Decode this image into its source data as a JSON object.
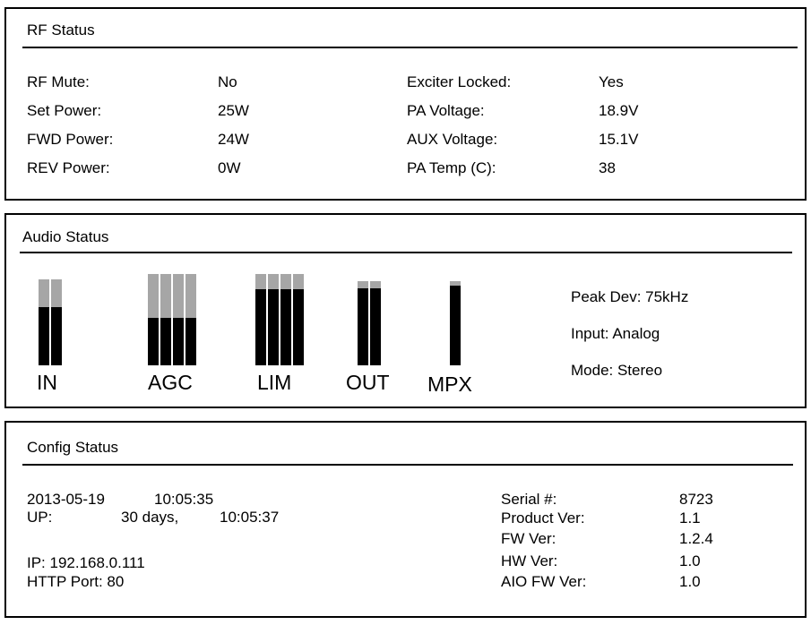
{
  "rf_status": {
    "title": "RF Status",
    "rows": [
      {
        "label": "RF Mute:",
        "value": "No",
        "label2": "Exciter Locked:",
        "value2": "Yes"
      },
      {
        "label": "Set Power:",
        "value": "25W",
        "label2": "PA Voltage:",
        "value2": "18.9V"
      },
      {
        "label": "FWD Power:",
        "value": "24W",
        "label2": "AUX Voltage:",
        "value2": "15.1V"
      },
      {
        "label": "REV Power:",
        "value": "0W",
        "label2": "PA Temp (C):",
        "value2": "38"
      }
    ]
  },
  "audio_status": {
    "title": "Audio Status",
    "meters": [
      {
        "label": "IN",
        "levels": [
          0.68,
          0.68
        ]
      },
      {
        "label": "AGC",
        "levels": [
          0.52,
          0.52,
          0.52,
          0.52
        ]
      },
      {
        "label": "LIM",
        "levels": [
          0.83,
          0.83,
          0.83,
          0.83
        ]
      },
      {
        "label": "OUT",
        "levels": [
          0.92,
          0.92
        ]
      },
      {
        "label": "MPX",
        "levels": [
          0.95
        ]
      }
    ],
    "peak_dev": "Peak Dev: 75kHz",
    "input": "Input: Analog",
    "mode": "Mode: Stereo"
  },
  "config_status": {
    "title": "Config Status",
    "date": "2013-05-19",
    "time": "10:05:35",
    "up_label": "UP:",
    "up_days": "30 days,",
    "up_time": "10:05:37",
    "ip": "IP: 192.168.0.111",
    "http_port": "HTTP Port: 80",
    "info": [
      {
        "label": "Serial #:",
        "value": "8723"
      },
      {
        "label": "Product Ver:",
        "value": "1.1"
      },
      {
        "label": "FW Ver:",
        "value": "1.2.4"
      },
      {
        "label": "HW Ver:",
        "value": "1.0"
      },
      {
        "label": "AIO FW Ver:",
        "value": "1.0"
      }
    ]
  },
  "colors": {
    "bar_fill": "#000000",
    "bar_background": "#a6a6a6",
    "border": "#000000"
  }
}
